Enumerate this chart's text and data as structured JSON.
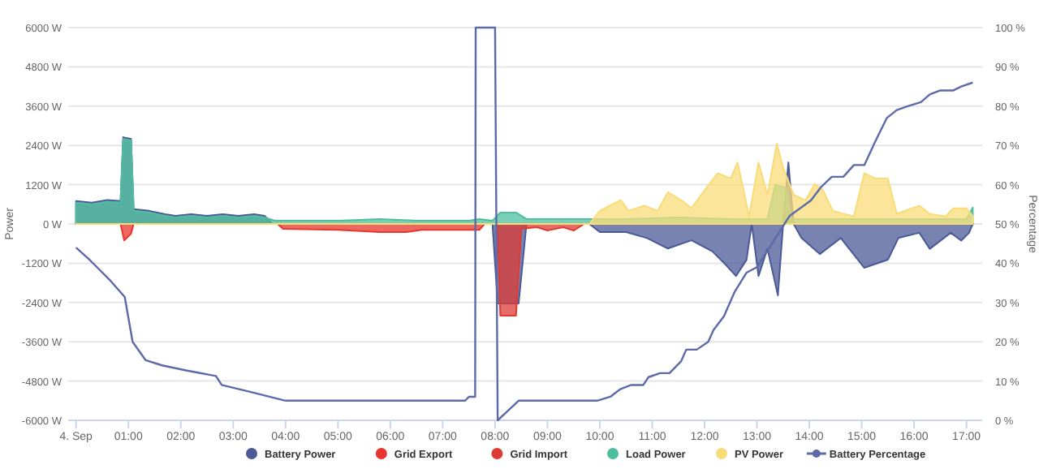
{
  "chart_data": {
    "type": "area",
    "ylabel": "Power",
    "y2label": "Percentage",
    "xlim": [
      -0.15,
      17.3
    ],
    "xticks": [
      {
        "value": 0,
        "label": "4. Sep"
      },
      {
        "value": 1,
        "label": "01:00"
      },
      {
        "value": 2,
        "label": "02:00"
      },
      {
        "value": 3,
        "label": "03:00"
      },
      {
        "value": 4,
        "label": "04:00"
      },
      {
        "value": 5,
        "label": "05:00"
      },
      {
        "value": 6,
        "label": "06:00"
      },
      {
        "value": 7,
        "label": "07:00"
      },
      {
        "value": 8,
        "label": "08:00"
      },
      {
        "value": 9,
        "label": "09:00"
      },
      {
        "value": 10,
        "label": "10:00"
      },
      {
        "value": 11,
        "label": "11:00"
      },
      {
        "value": 12,
        "label": "12:00"
      },
      {
        "value": 13,
        "label": "13:00"
      },
      {
        "value": 14,
        "label": "14:00"
      },
      {
        "value": 15,
        "label": "15:00"
      },
      {
        "value": 16,
        "label": "16:00"
      },
      {
        "value": 17,
        "label": "17:00"
      }
    ],
    "ylim": [
      -6000,
      6000
    ],
    "yticks": [
      {
        "value": -6000,
        "label": "-6000 W"
      },
      {
        "value": -4800,
        "label": "-4800 W"
      },
      {
        "value": -3600,
        "label": "-3600 W"
      },
      {
        "value": -2400,
        "label": "-2400 W"
      },
      {
        "value": -1200,
        "label": "-1200 W"
      },
      {
        "value": 0,
        "label": "0 W"
      },
      {
        "value": 1200,
        "label": "1200 W"
      },
      {
        "value": 2400,
        "label": "2400 W"
      },
      {
        "value": 3600,
        "label": "3600 W"
      },
      {
        "value": 4800,
        "label": "4800 W"
      },
      {
        "value": 6000,
        "label": "6000 W"
      }
    ],
    "y2lim": [
      0,
      100
    ],
    "y2ticks": [
      {
        "value": 0,
        "label": "0 %"
      },
      {
        "value": 10,
        "label": "10 %"
      },
      {
        "value": 20,
        "label": "20 %"
      },
      {
        "value": 30,
        "label": "30 %"
      },
      {
        "value": 40,
        "label": "40 %"
      },
      {
        "value": 50,
        "label": "50 %"
      },
      {
        "value": 60,
        "label": "60 %"
      },
      {
        "value": 70,
        "label": "70 %"
      },
      {
        "value": 80,
        "label": "80 %"
      },
      {
        "value": 90,
        "label": "90 %"
      },
      {
        "value": 100,
        "label": "100 %"
      }
    ],
    "grid": "y",
    "legend": "bottom",
    "marker": "none",
    "series": [
      {
        "name": "Battery Power",
        "color": "#4b5a97",
        "x": [
          0,
          0.3,
          0.6,
          0.85,
          0.9,
          1.05,
          1.1,
          1.4,
          1.7,
          1.9,
          2.2,
          2.5,
          2.8,
          3.1,
          3.4,
          3.6,
          3.75,
          7.95,
          8.05,
          8.45,
          8.6,
          9.8,
          10.0,
          10.5,
          10.9,
          11.3,
          11.75,
          12.15,
          12.4,
          12.6,
          12.8,
          12.9,
          13.03,
          13.2,
          13.4,
          13.5,
          13.6,
          13.7,
          13.85,
          14.2,
          14.6,
          15.05,
          15.5,
          15.7,
          16.1,
          16.3,
          16.7,
          16.9,
          17.05,
          17.12
        ],
        "values": [
          700,
          650,
          730,
          700,
          2650,
          2600,
          450,
          400,
          300,
          250,
          300,
          250,
          300,
          250,
          300,
          250,
          0,
          0,
          -2430,
          -2430,
          0,
          0,
          -250,
          -250,
          -430,
          -750,
          -500,
          -840,
          -1240,
          -1590,
          -1100,
          0,
          -1590,
          -760,
          -2180,
          0,
          1880,
          0,
          -430,
          -920,
          -430,
          -1340,
          -1090,
          -430,
          -270,
          -760,
          -270,
          -510,
          -270,
          0
        ]
      },
      {
        "name": "Grid Export",
        "color": "#e8362e",
        "x": [
          0,
          0.85,
          0.92,
          1.05,
          1.1,
          3.85,
          3.95,
          5.0,
          5.8,
          6.3,
          6.6,
          7.7,
          7.8,
          17.12
        ],
        "values": [
          0,
          0,
          -500,
          -300,
          0,
          0,
          -150,
          -180,
          -250,
          -250,
          -180,
          -180,
          0,
          0
        ]
      },
      {
        "name": "Grid Import",
        "color": "#de3b34",
        "x": [
          0,
          8.05,
          8.1,
          8.4,
          8.5,
          8.8,
          9.0,
          9.3,
          9.5,
          9.7,
          17.12
        ],
        "values": [
          0,
          0,
          -2800,
          -2800,
          -150,
          -100,
          -200,
          -100,
          -200,
          0,
          0
        ]
      },
      {
        "name": "Load Power",
        "color": "#4dbf9f",
        "x": [
          0,
          0.3,
          0.6,
          0.85,
          0.9,
          1.05,
          1.1,
          1.4,
          1.7,
          1.9,
          2.2,
          2.5,
          2.8,
          3.1,
          3.4,
          3.6,
          3.8,
          5.0,
          5.8,
          6.5,
          7.5,
          7.7,
          7.95,
          8.1,
          8.4,
          8.6,
          9.5,
          10.5,
          11.5,
          12.5,
          13.2,
          13.35,
          13.55,
          13.65,
          14.5,
          15.5,
          16.5,
          17.0,
          17.12
        ],
        "values": [
          650,
          600,
          680,
          650,
          2600,
          2550,
          400,
          350,
          250,
          200,
          250,
          200,
          250,
          200,
          250,
          200,
          100,
          100,
          150,
          100,
          100,
          150,
          100,
          350,
          350,
          150,
          150,
          150,
          200,
          150,
          150,
          1200,
          1100,
          150,
          150,
          150,
          150,
          150,
          500
        ]
      },
      {
        "name": "PV Power",
        "color": "#f8dc7a",
        "x": [
          0,
          9.8,
          10.0,
          10.4,
          10.55,
          10.85,
          11.1,
          11.3,
          11.55,
          11.75,
          12.05,
          12.25,
          12.5,
          12.63,
          12.85,
          13.03,
          13.2,
          13.38,
          13.5,
          13.7,
          13.93,
          14.1,
          14.25,
          14.45,
          14.85,
          15.05,
          15.26,
          15.5,
          15.67,
          16.1,
          16.3,
          16.6,
          16.75,
          17.0,
          17.12
        ],
        "values": [
          0,
          0,
          400,
          730,
          400,
          560,
          400,
          970,
          730,
          480,
          1140,
          1550,
          1390,
          1880,
          230,
          1880,
          890,
          2460,
          1720,
          890,
          730,
          1220,
          1060,
          400,
          230,
          1550,
          1390,
          1390,
          310,
          560,
          310,
          230,
          480,
          480,
          230
        ]
      },
      {
        "name": "Battery Percentage",
        "type": "line",
        "axis": "y2",
        "color": "#5d6aa8",
        "x": [
          0,
          0.25,
          0.4,
          0.66,
          0.93,
          1.08,
          1.33,
          1.64,
          2.1,
          2.67,
          2.78,
          3.4,
          4.0,
          7.43,
          7.5,
          7.62,
          7.63,
          8.0,
          8.05,
          8.45,
          9.95,
          10.2,
          10.4,
          10.6,
          10.83,
          10.93,
          11.15,
          11.33,
          11.55,
          11.65,
          11.85,
          12.07,
          12.17,
          12.37,
          12.57,
          12.8,
          13.0,
          13.62,
          14.03,
          14.23,
          14.43,
          14.65,
          14.85,
          15.05,
          15.26,
          15.48,
          15.67,
          15.88,
          16.13,
          16.3,
          16.5,
          16.75,
          16.9,
          17.12
        ],
        "values": [
          44,
          41,
          39,
          35.5,
          31.4,
          20,
          15.3,
          14,
          12.7,
          11.3,
          9,
          7,
          5,
          5,
          6,
          6,
          100,
          100,
          0,
          5,
          5,
          6,
          8,
          9,
          9,
          11,
          12,
          12,
          15,
          18,
          18,
          20,
          23,
          26.5,
          32.6,
          37.6,
          39,
          52,
          56,
          59.5,
          62,
          62,
          65,
          65,
          71,
          77,
          79,
          80,
          81,
          83,
          84,
          84,
          85,
          86
        ]
      }
    ]
  }
}
